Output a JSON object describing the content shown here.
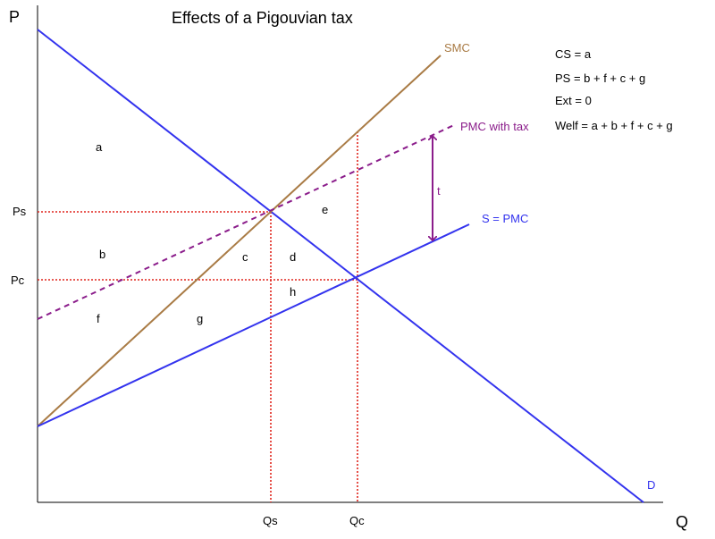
{
  "title": "Effects of a Pigouvian tax",
  "axes": {
    "y_label": "P",
    "x_label": "Q"
  },
  "price_ticks": {
    "ps": "Ps",
    "pc": "Pc"
  },
  "quantity_ticks": {
    "qs": "Qs",
    "qc": "Qc"
  },
  "curves": {
    "smc": {
      "label": "SMC",
      "color": "#a97b45"
    },
    "pmc_tax": {
      "label": "PMC with tax",
      "color": "#8b1d8b"
    },
    "supply": {
      "label": "S = PMC",
      "color": "#3333ee"
    },
    "demand": {
      "label": "D",
      "color": "#3333ee"
    }
  },
  "tax_label": "t",
  "areas": [
    "a",
    "b",
    "c",
    "d",
    "e",
    "f",
    "g",
    "h"
  ],
  "legend": [
    "CS = a",
    "PS = b + f + c + g",
    "Ext = 0",
    "Welf = a + b + f + c + g"
  ],
  "guide_color": "#e0241c"
}
